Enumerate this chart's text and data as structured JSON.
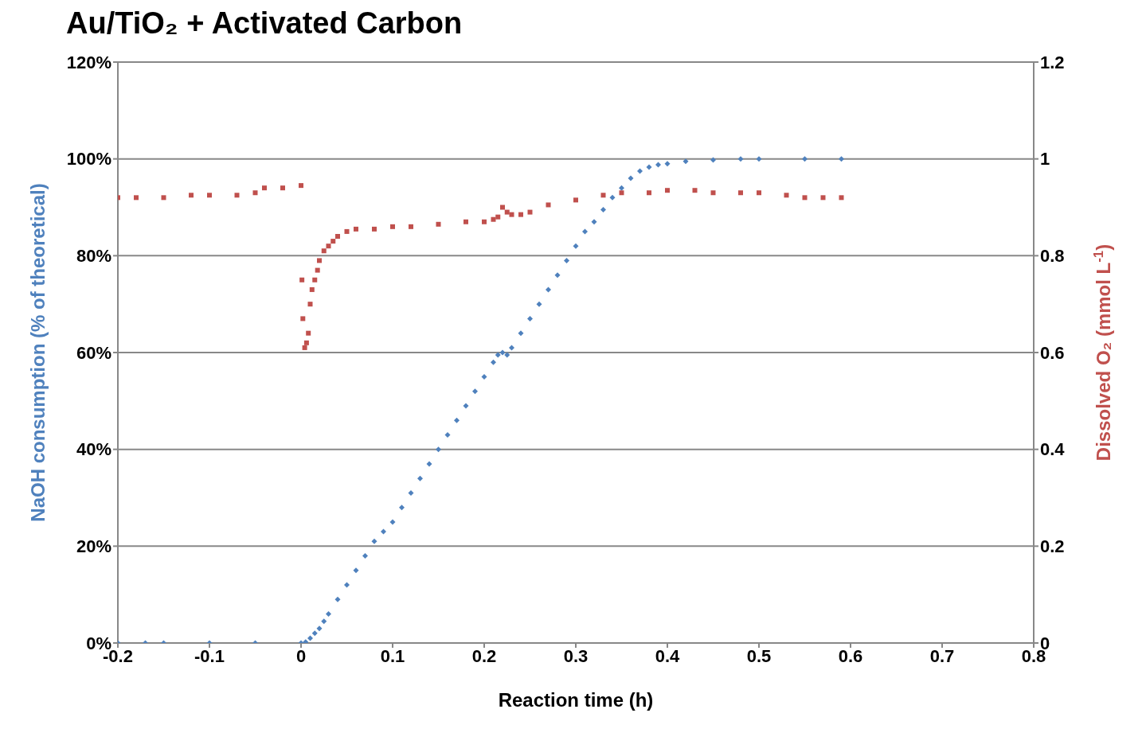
{
  "chart_data": {
    "type": "scatter",
    "title": "Au/TiO₂ +  Activated Carbon",
    "xlabel": "Reaction time (h)",
    "ylabel": "NaOH consumption (% of theoretical)",
    "y2label": "Dissolved O₂ (mmol L$^{-1}$)",
    "xlim": [
      -0.2,
      0.8
    ],
    "xticks": [
      -0.2,
      -0.1,
      0,
      0.1,
      0.2,
      0.3,
      0.4,
      0.5,
      0.6,
      0.7,
      0.8
    ],
    "ylim": [
      0,
      120
    ],
    "yticks": [
      {
        "value": 0,
        "label": "0%"
      },
      {
        "value": 20,
        "label": "20%"
      },
      {
        "value": 40,
        "label": "40%"
      },
      {
        "value": 60,
        "label": "60%"
      },
      {
        "value": 80,
        "label": "80%"
      },
      {
        "value": 100,
        "label": "100%"
      },
      {
        "value": 120,
        "label": "120%"
      }
    ],
    "y2lim": [
      0,
      1.2
    ],
    "y2ticks": [
      0,
      0.2,
      0.4,
      0.6,
      0.8,
      1,
      1.2
    ],
    "grid": "y",
    "series": [
      {
        "color": "#4f81bd",
        "marker": "diamond",
        "x": [
          -0.2,
          -0.17,
          -0.15,
          -0.1,
          -0.05,
          0,
          0.005,
          0.01,
          0.015,
          0.02,
          0.025,
          0.03,
          0.04,
          0.05,
          0.06,
          0.07,
          0.08,
          0.09,
          0.1,
          0.11,
          0.12,
          0.13,
          0.14,
          0.15,
          0.16,
          0.17,
          0.18,
          0.19,
          0.2,
          0.21,
          0.215,
          0.22,
          0.225,
          0.23,
          0.24,
          0.25,
          0.26,
          0.27,
          0.28,
          0.29,
          0.3,
          0.31,
          0.32,
          0.33,
          0.34,
          0.35,
          0.36,
          0.37,
          0.38,
          0.39,
          0.4,
          0.42,
          0.45,
          0.48,
          0.5,
          0.55,
          0.59
        ],
        "values": [
          0,
          0,
          0,
          0,
          0,
          0,
          0.2,
          1,
          2,
          3,
          4.5,
          6,
          9,
          12,
          15,
          18,
          21,
          23,
          25,
          28,
          31,
          34,
          37,
          40,
          43,
          46,
          49,
          52,
          55,
          58,
          59.5,
          60,
          59.5,
          61,
          64,
          67,
          70,
          73,
          76,
          79,
          82,
          85,
          87,
          89.5,
          92,
          94,
          96,
          97.5,
          98.3,
          98.8,
          99,
          99.5,
          99.8,
          100,
          100,
          100,
          100
        ]
      },
      {
        "color": "#c0504d",
        "marker": "square",
        "axis": "y2",
        "x": [
          -0.2,
          -0.18,
          -0.15,
          -0.12,
          -0.1,
          -0.07,
          -0.05,
          -0.04,
          -0.02,
          0,
          0.001,
          0.002,
          0.004,
          0.006,
          0.008,
          0.01,
          0.012,
          0.015,
          0.018,
          0.02,
          0.025,
          0.03,
          0.035,
          0.04,
          0.05,
          0.06,
          0.08,
          0.1,
          0.12,
          0.15,
          0.18,
          0.2,
          0.21,
          0.215,
          0.22,
          0.225,
          0.23,
          0.24,
          0.25,
          0.27,
          0.3,
          0.33,
          0.35,
          0.38,
          0.4,
          0.43,
          0.45,
          0.48,
          0.5,
          0.53,
          0.55,
          0.57,
          0.59
        ],
        "values": [
          0.92,
          0.92,
          0.92,
          0.925,
          0.925,
          0.925,
          0.93,
          0.94,
          0.94,
          0.945,
          0.75,
          0.67,
          0.61,
          0.62,
          0.64,
          0.7,
          0.73,
          0.75,
          0.77,
          0.79,
          0.81,
          0.82,
          0.83,
          0.84,
          0.85,
          0.855,
          0.855,
          0.86,
          0.86,
          0.865,
          0.87,
          0.87,
          0.875,
          0.88,
          0.9,
          0.89,
          0.885,
          0.885,
          0.89,
          0.905,
          0.915,
          0.925,
          0.93,
          0.93,
          0.935,
          0.935,
          0.93,
          0.93,
          0.93,
          0.925,
          0.92,
          0.92,
          0.92
        ]
      }
    ]
  }
}
